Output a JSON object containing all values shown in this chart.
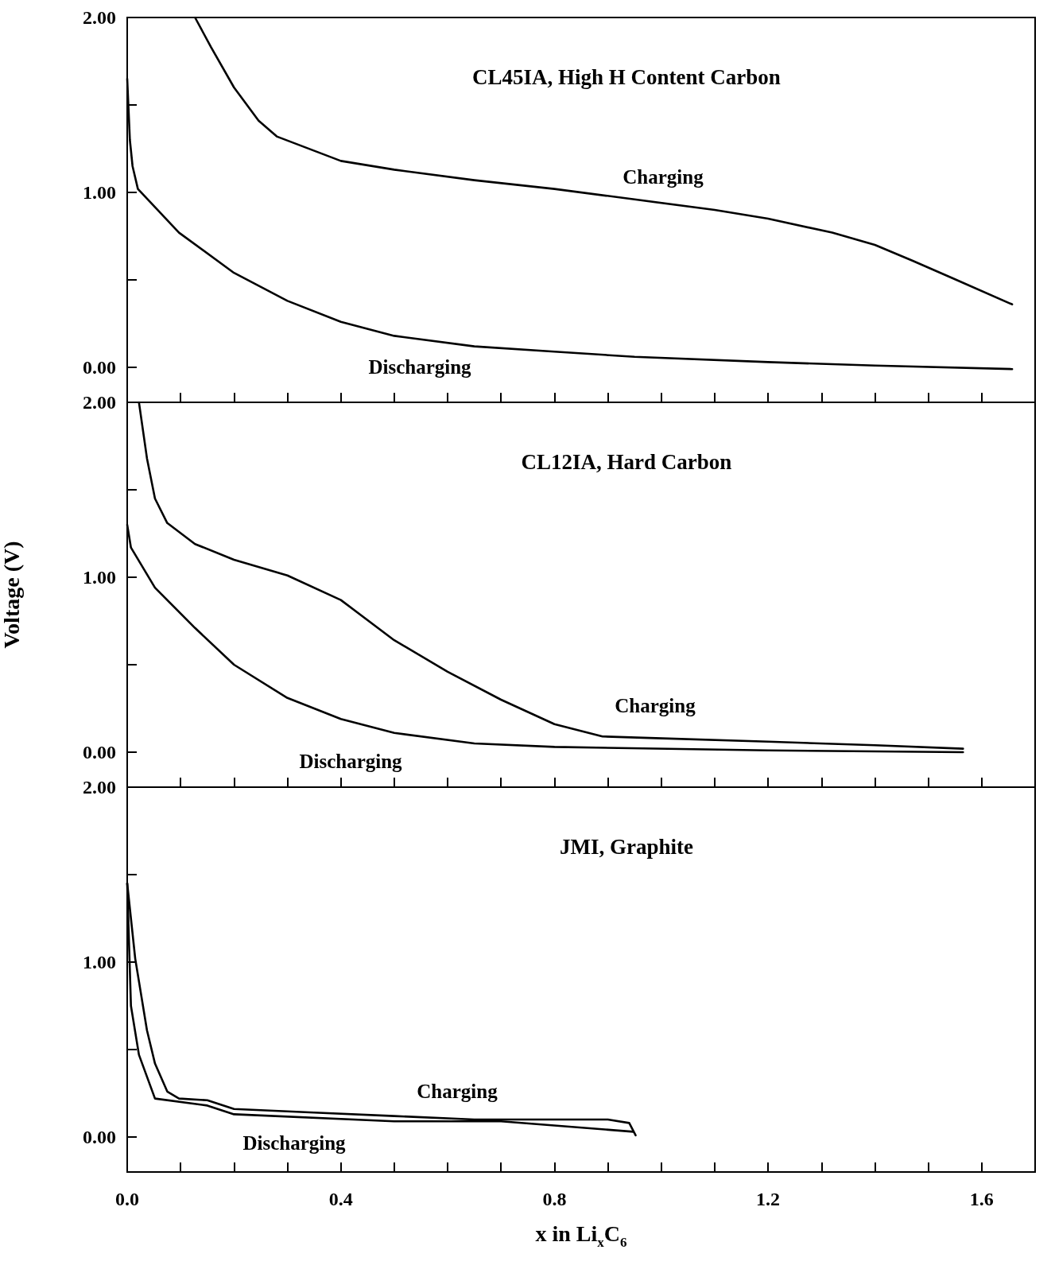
{
  "chart_data": [
    {
      "type": "line",
      "title": "CL45IA, High H Content Carbon",
      "tick_labels": "y",
      "xlim": [
        0,
        1.7
      ],
      "ylim": [
        -0.2,
        2.0
      ],
      "xticks": [
        {
          "value": 0,
          "label": null
        },
        {
          "value": 0.1,
          "label": null
        },
        {
          "value": 0.2,
          "label": null
        },
        {
          "value": 0.3,
          "label": null
        },
        {
          "value": 0.4,
          "label": null
        },
        {
          "value": 0.5,
          "label": null
        },
        {
          "value": 0.6,
          "label": null
        },
        {
          "value": 0.7,
          "label": null
        },
        {
          "value": 0.8,
          "label": null
        },
        {
          "value": 0.9,
          "label": null
        },
        {
          "value": 1.0,
          "label": null
        },
        {
          "value": 1.1,
          "label": null
        },
        {
          "value": 1.2,
          "label": null
        },
        {
          "value": 1.3,
          "label": null
        },
        {
          "value": 1.4,
          "label": null
        },
        {
          "value": 1.5,
          "label": null
        },
        {
          "value": 1.6,
          "label": null
        }
      ],
      "yticks": [
        {
          "value": 0,
          "label": "0.00"
        },
        {
          "value": 0.5,
          "label": null
        },
        {
          "value": 1,
          "label": "1.00"
        },
        {
          "value": 1.5,
          "label": null
        },
        {
          "value": 2,
          "label": "2.00"
        }
      ],
      "grid": false,
      "series": [
        {
          "color": "#000000",
          "x": [
            0.127,
            0.157,
            0.2,
            0.246,
            0.28,
            0.4,
            0.5,
            0.65,
            0.8,
            0.95,
            1.1,
            1.2,
            1.32,
            1.4,
            1.47,
            1.545,
            1.657
          ],
          "values": [
            2.0,
            1.83,
            1.6,
            1.41,
            1.32,
            1.18,
            1.13,
            1.07,
            1.02,
            0.96,
            0.9,
            0.85,
            0.77,
            0.7,
            0.61,
            0.51,
            0.36
          ]
        },
        {
          "color": "#000000",
          "x": [
            0,
            0.005,
            0.01,
            0.02,
            0.097,
            0.2,
            0.3,
            0.4,
            0.5,
            0.65,
            0.8,
            0.95,
            1.2,
            1.4,
            1.657
          ],
          "values": [
            1.65,
            1.3,
            1.15,
            1.02,
            0.77,
            0.54,
            0.38,
            0.26,
            0.18,
            0.12,
            0.09,
            0.06,
            0.03,
            0.01,
            -0.01
          ]
        }
      ],
      "annotations": [
        "Charging",
        "Discharging"
      ]
    },
    {
      "type": "line",
      "title": "CL12IA, Hard Carbon",
      "ylabel": "Voltage (V)",
      "tick_labels": "y",
      "xlim": [
        0,
        1.7
      ],
      "ylim": [
        -0.2,
        2.0
      ],
      "xticks": [
        {
          "value": 0,
          "label": null
        },
        {
          "value": 0.1,
          "label": null
        },
        {
          "value": 0.2,
          "label": null
        },
        {
          "value": 0.3,
          "label": null
        },
        {
          "value": 0.4,
          "label": null
        },
        {
          "value": 0.5,
          "label": null
        },
        {
          "value": 0.6,
          "label": null
        },
        {
          "value": 0.7,
          "label": null
        },
        {
          "value": 0.8,
          "label": null
        },
        {
          "value": 0.9,
          "label": null
        },
        {
          "value": 1.0,
          "label": null
        },
        {
          "value": 1.1,
          "label": null
        },
        {
          "value": 1.2,
          "label": null
        },
        {
          "value": 1.3,
          "label": null
        },
        {
          "value": 1.4,
          "label": null
        },
        {
          "value": 1.5,
          "label": null
        },
        {
          "value": 1.6,
          "label": null
        }
      ],
      "yticks": [
        {
          "value": 0,
          "label": "0.00"
        },
        {
          "value": 0.5,
          "label": null
        },
        {
          "value": 1,
          "label": "1.00"
        },
        {
          "value": 1.5,
          "label": null
        },
        {
          "value": 2,
          "label": "2.00"
        }
      ],
      "grid": false,
      "series": [
        {
          "color": "#000000",
          "x": [
            0.022,
            0.037,
            0.052,
            0.075,
            0.127,
            0.2,
            0.3,
            0.4,
            0.5,
            0.6,
            0.7,
            0.8,
            0.89,
            0.99,
            1.2,
            1.4,
            1.565
          ],
          "values": [
            2.0,
            1.68,
            1.45,
            1.31,
            1.19,
            1.1,
            1.01,
            0.87,
            0.64,
            0.46,
            0.3,
            0.16,
            0.09,
            0.08,
            0.06,
            0.04,
            0.02
          ]
        },
        {
          "color": "#000000",
          "x": [
            0,
            0.007,
            0.052,
            0.127,
            0.2,
            0.3,
            0.4,
            0.5,
            0.65,
            0.8,
            1.2,
            1.565
          ],
          "values": [
            1.3,
            1.17,
            0.94,
            0.71,
            0.5,
            0.31,
            0.19,
            0.11,
            0.05,
            0.03,
            0.01,
            0.0
          ]
        }
      ],
      "annotations": [
        "Charging",
        "Discharging"
      ]
    },
    {
      "type": "line",
      "title": "JMI, Graphite",
      "xlabel": "x in Li$_{x}$C$_{6}$",
      "xlim": [
        0,
        1.7
      ],
      "ylim": [
        -0.2,
        2.0
      ],
      "xticks": [
        {
          "value": 0,
          "label": "0.0"
        },
        {
          "value": 0.1,
          "label": null
        },
        {
          "value": 0.2,
          "label": null
        },
        {
          "value": 0.3,
          "label": null
        },
        {
          "value": 0.4,
          "label": "0.4"
        },
        {
          "value": 0.5,
          "label": null
        },
        {
          "value": 0.6,
          "label": null
        },
        {
          "value": 0.7,
          "label": null
        },
        {
          "value": 0.8,
          "label": "0.8"
        },
        {
          "value": 0.9,
          "label": null
        },
        {
          "value": 1.0,
          "label": null
        },
        {
          "value": 1.1,
          "label": null
        },
        {
          "value": 1.2,
          "label": "1.2"
        },
        {
          "value": 1.3,
          "label": null
        },
        {
          "value": 1.4,
          "label": null
        },
        {
          "value": 1.5,
          "label": null
        },
        {
          "value": 1.6,
          "label": "1.6"
        }
      ],
      "yticks": [
        {
          "value": 0,
          "label": "0.00"
        },
        {
          "value": 0.5,
          "label": null
        },
        {
          "value": 1,
          "label": "1.00"
        },
        {
          "value": 1.5,
          "label": null
        },
        {
          "value": 2,
          "label": "2.00"
        }
      ],
      "grid": false,
      "series": [
        {
          "color": "#000000",
          "x": [
            0,
            0.015,
            0.037,
            0.052,
            0.075,
            0.097,
            0.15,
            0.2,
            0.35,
            0.5,
            0.65,
            0.9,
            0.94,
            0.952
          ],
          "values": [
            1.45,
            1.02,
            0.61,
            0.42,
            0.26,
            0.22,
            0.21,
            0.16,
            0.14,
            0.12,
            0.1,
            0.1,
            0.08,
            0.01
          ]
        },
        {
          "color": "#000000",
          "x": [
            0,
            0.007,
            0.022,
            0.052,
            0.15,
            0.2,
            0.5,
            0.7,
            0.948
          ],
          "values": [
            1.45,
            0.75,
            0.47,
            0.22,
            0.18,
            0.13,
            0.09,
            0.09,
            0.03
          ]
        }
      ],
      "annotations": [
        "Charging",
        "Discharging"
      ]
    }
  ]
}
